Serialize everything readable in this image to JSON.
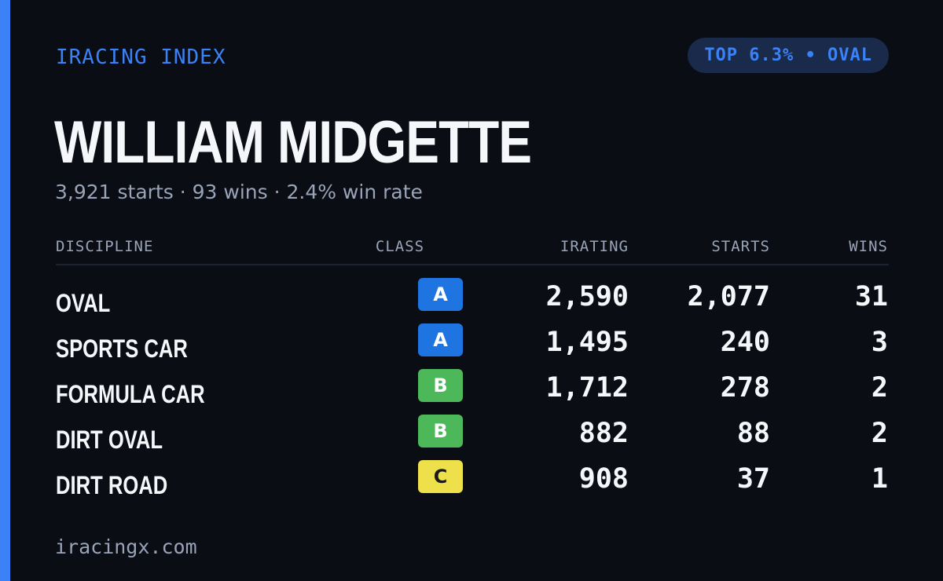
{
  "header": {
    "brand": "IRACING INDEX",
    "rank_badge": "TOP 6.3% • OVAL",
    "accent_color": "#3b82f6"
  },
  "driver": {
    "name": "WILLIAM MIDGETTE",
    "summary": "3,921 starts · 93 wins · 2.4% win rate"
  },
  "table": {
    "columns": {
      "discipline": "DISCIPLINE",
      "class": "CLASS",
      "irating": "IRATING",
      "starts": "STARTS",
      "wins": "WINS"
    },
    "rows": [
      {
        "discipline": "OVAL",
        "class": "A",
        "class_color": "#1e74e0",
        "class_text_color": "#ffffff",
        "irating": "2,590",
        "starts": "2,077",
        "wins": "31"
      },
      {
        "discipline": "SPORTS CAR",
        "class": "A",
        "class_color": "#1e74e0",
        "class_text_color": "#ffffff",
        "irating": "1,495",
        "starts": "240",
        "wins": "3"
      },
      {
        "discipline": "FORMULA CAR",
        "class": "B",
        "class_color": "#4cb85a",
        "class_text_color": "#ffffff",
        "irating": "1,712",
        "starts": "278",
        "wins": "2"
      },
      {
        "discipline": "DIRT OVAL",
        "class": "B",
        "class_color": "#4cb85a",
        "class_text_color": "#ffffff",
        "irating": "882",
        "starts": "88",
        "wins": "2"
      },
      {
        "discipline": "DIRT ROAD",
        "class": "C",
        "class_color": "#ede04a",
        "class_text_color": "#1a1a1a",
        "irating": "908",
        "starts": "37",
        "wins": "1"
      }
    ]
  },
  "footer": {
    "site": "iracingx.com"
  }
}
